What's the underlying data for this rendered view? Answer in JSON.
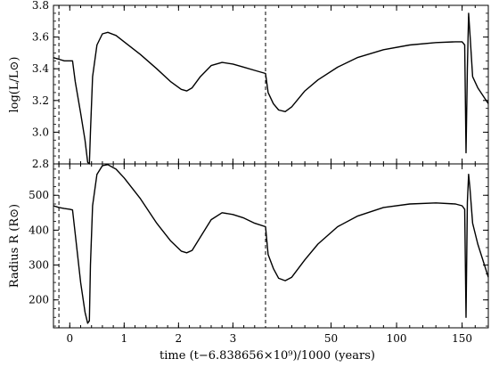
{
  "chart_data": {
    "type": "line",
    "title": "",
    "xlabel": "time   (t−6.838656×10⁹)/1000   (years)",
    "x_axis": {
      "segments": [
        {
          "range": [
            -0.3,
            3.6
          ],
          "ticks": [
            0,
            1,
            2,
            3
          ],
          "tick_labels": [
            "0",
            "1",
            "2",
            "3"
          ]
        },
        {
          "range": [
            0,
            170
          ],
          "ticks": [
            50,
            100,
            150
          ],
          "tick_labels": [
            "50",
            "100",
            "150"
          ]
        }
      ],
      "break_lines": [
        -0.2,
        3.6
      ]
    },
    "panels": [
      {
        "ylabel": "log(L/L⊙)",
        "ylim": [
          2.8,
          3.8
        ],
        "yticks": [
          2.8,
          3.0,
          3.2,
          3.4,
          3.6,
          3.8
        ],
        "ytick_labels": [
          "2.8",
          "3.0",
          "3.2",
          "3.4",
          "3.6",
          "3.8"
        ],
        "series": [
          {
            "segment1": [
              [
                -0.3,
                3.47
              ],
              [
                -0.2,
                3.46
              ],
              [
                -0.1,
                3.45
              ],
              [
                0.0,
                3.45
              ],
              [
                0.05,
                3.45
              ],
              [
                0.1,
                3.32
              ],
              [
                0.2,
                3.12
              ],
              [
                0.28,
                2.95
              ],
              [
                0.33,
                2.81
              ],
              [
                0.36,
                2.8
              ],
              [
                0.38,
                3.0
              ],
              [
                0.42,
                3.35
              ],
              [
                0.5,
                3.55
              ],
              [
                0.6,
                3.62
              ],
              [
                0.7,
                3.63
              ],
              [
                0.85,
                3.61
              ],
              [
                1.0,
                3.57
              ],
              [
                1.3,
                3.49
              ],
              [
                1.6,
                3.4
              ],
              [
                1.85,
                3.32
              ],
              [
                2.05,
                3.27
              ],
              [
                2.15,
                3.26
              ],
              [
                2.25,
                3.28
              ],
              [
                2.4,
                3.35
              ],
              [
                2.6,
                3.42
              ],
              [
                2.8,
                3.44
              ],
              [
                3.0,
                3.43
              ],
              [
                3.2,
                3.41
              ],
              [
                3.4,
                3.39
              ],
              [
                3.6,
                3.37
              ]
            ],
            "segment2": [
              [
                0,
                3.37
              ],
              [
                2,
                3.25
              ],
              [
                6,
                3.18
              ],
              [
                10,
                3.14
              ],
              [
                15,
                3.13
              ],
              [
                20,
                3.16
              ],
              [
                30,
                3.26
              ],
              [
                40,
                3.33
              ],
              [
                55,
                3.41
              ],
              [
                70,
                3.47
              ],
              [
                90,
                3.52
              ],
              [
                110,
                3.55
              ],
              [
                130,
                3.565
              ],
              [
                145,
                3.57
              ],
              [
                150,
                3.57
              ],
              [
                152,
                3.55
              ],
              [
                153,
                2.87
              ],
              [
                154,
                3.4
              ],
              [
                155,
                3.75
              ],
              [
                156,
                3.62
              ],
              [
                158,
                3.35
              ],
              [
                162,
                3.28
              ],
              [
                170,
                3.18
              ]
            ]
          }
        ]
      },
      {
        "ylabel": "Radius   R   (R⊙)",
        "ylim": [
          120,
          590
        ],
        "yticks": [
          200,
          300,
          400,
          500
        ],
        "ytick_labels": [
          "200",
          "300",
          "400",
          "500"
        ],
        "series": [
          {
            "segment1": [
              [
                -0.3,
                470
              ],
              [
                -0.2,
                465
              ],
              [
                -0.1,
                462
              ],
              [
                0.0,
                460
              ],
              [
                0.05,
                458
              ],
              [
                0.1,
                390
              ],
              [
                0.2,
                250
              ],
              [
                0.28,
                165
              ],
              [
                0.33,
                133
              ],
              [
                0.36,
                140
              ],
              [
                0.38,
                300
              ],
              [
                0.42,
                470
              ],
              [
                0.5,
                560
              ],
              [
                0.6,
                585
              ],
              [
                0.7,
                588
              ],
              [
                0.85,
                575
              ],
              [
                1.0,
                550
              ],
              [
                1.3,
                490
              ],
              [
                1.6,
                420
              ],
              [
                1.85,
                370
              ],
              [
                2.05,
                340
              ],
              [
                2.15,
                335
              ],
              [
                2.25,
                342
              ],
              [
                2.4,
                380
              ],
              [
                2.6,
                430
              ],
              [
                2.8,
                450
              ],
              [
                3.0,
                445
              ],
              [
                3.2,
                435
              ],
              [
                3.4,
                420
              ],
              [
                3.6,
                410
              ]
            ],
            "segment2": [
              [
                0,
                410
              ],
              [
                2,
                330
              ],
              [
                6,
                290
              ],
              [
                10,
                262
              ],
              [
                15,
                255
              ],
              [
                20,
                265
              ],
              [
                30,
                315
              ],
              [
                40,
                360
              ],
              [
                55,
                410
              ],
              [
                70,
                440
              ],
              [
                90,
                465
              ],
              [
                110,
                475
              ],
              [
                130,
                478
              ],
              [
                145,
                475
              ],
              [
                150,
                470
              ],
              [
                152,
                460
              ],
              [
                153,
                150
              ],
              [
                154,
                480
              ],
              [
                155,
                560
              ],
              [
                156,
                520
              ],
              [
                158,
                420
              ],
              [
                162,
                360
              ],
              [
                170,
                265
              ]
            ]
          }
        ]
      }
    ]
  }
}
